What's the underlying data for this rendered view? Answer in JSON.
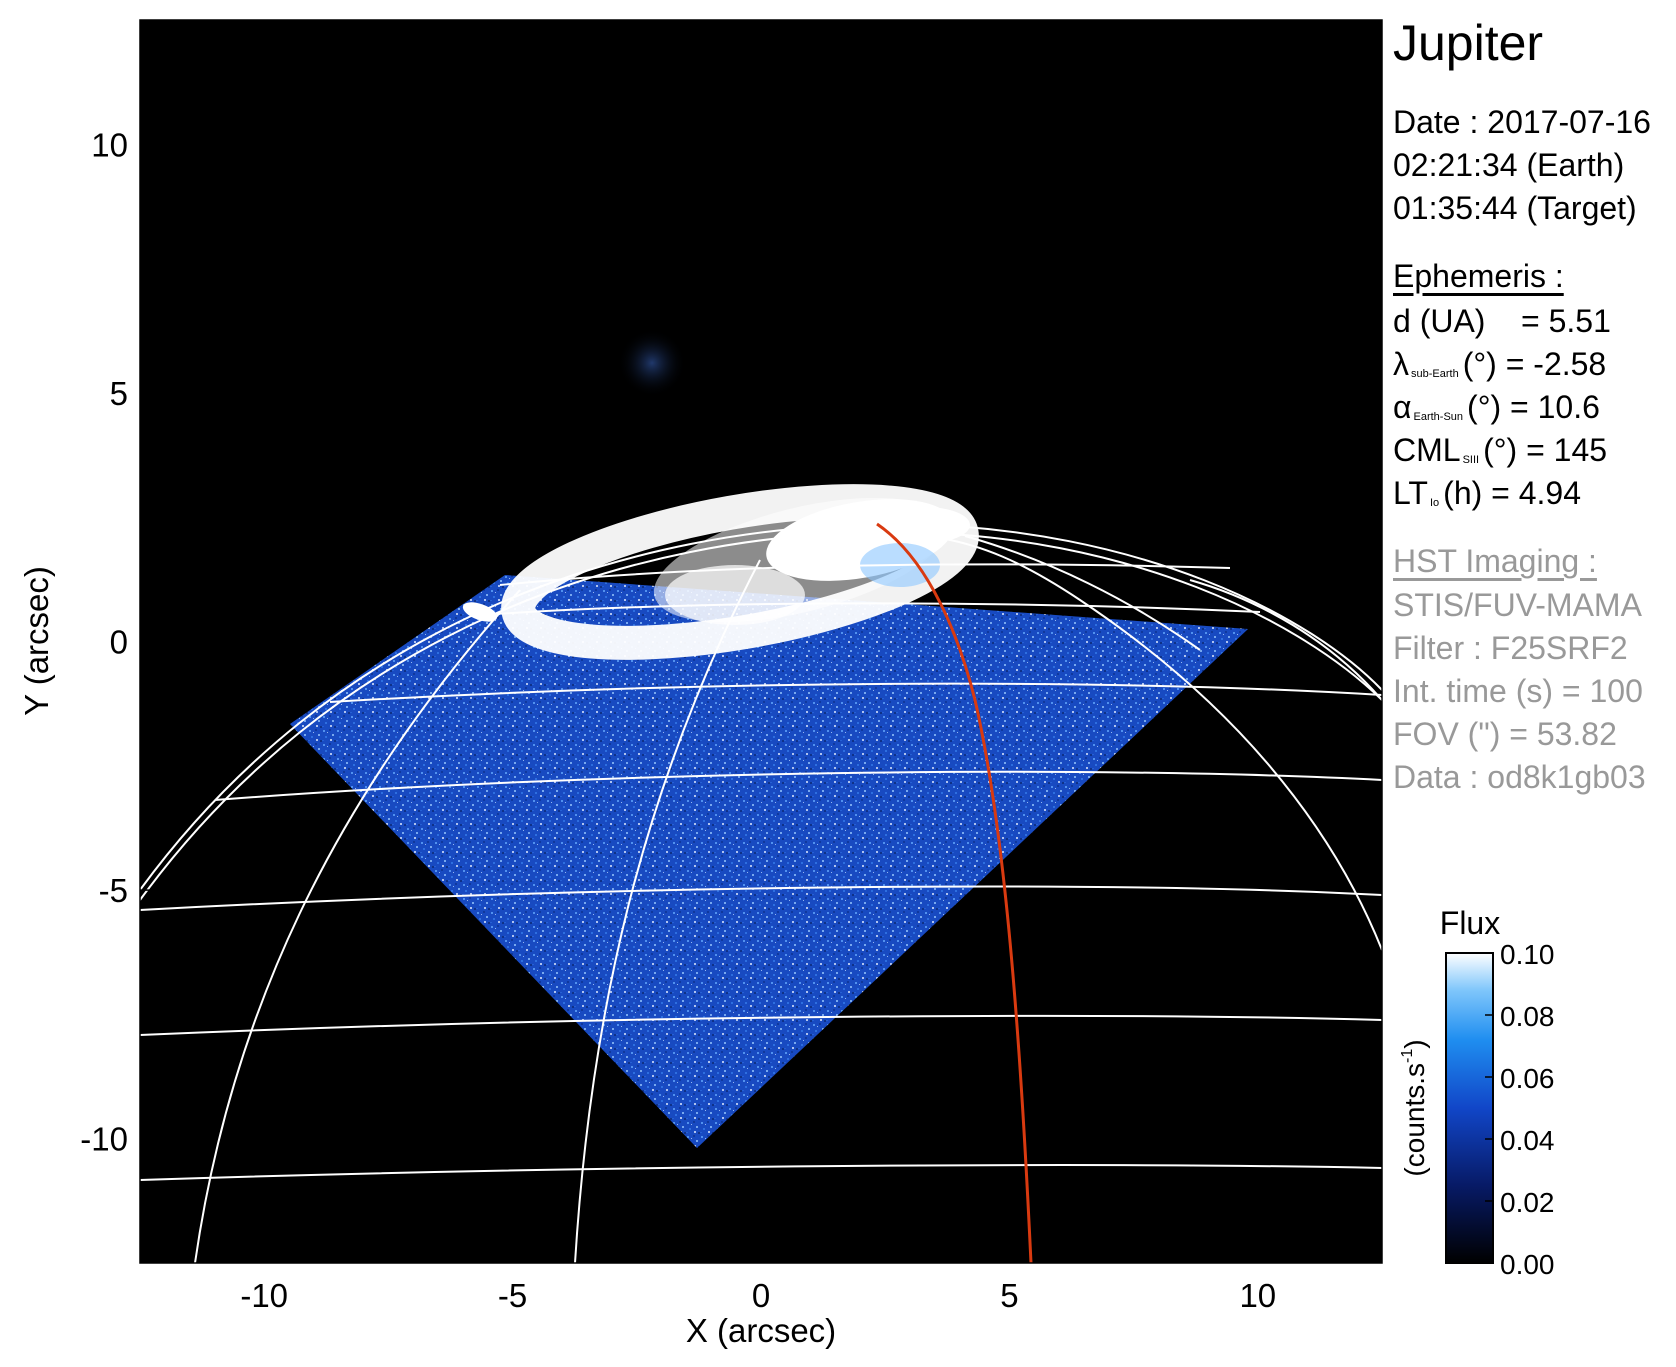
{
  "figure": {
    "colors": {
      "sky": "#000000",
      "disk": "#1f4fcc",
      "aurora": "#ffffff",
      "grid": "#ffffff",
      "meridian": "#d93a10",
      "info_gray": "#999999"
    }
  },
  "axes": {
    "xlabel": "X (arcsec)",
    "ylabel": "Y (arcsec)",
    "xlim": [
      -12.5,
      12.5
    ],
    "ylim": [
      -12.5,
      12.5
    ],
    "xticks": [
      "-10",
      "-5",
      "0",
      "5",
      "10"
    ],
    "yticks": [
      "10",
      "5",
      "0",
      "-5",
      "-10"
    ]
  },
  "info": {
    "planet": "Jupiter",
    "date": "Date : 2017-07-16",
    "time_earth": "02:21:34 (Earth)",
    "time_target": "01:35:44 (Target)",
    "ephemeris_header": "Ephemeris :",
    "eph": {
      "d_label": "d (UA)",
      "d_value": "= 5.51",
      "lambda_sym": "λ",
      "lambda_sub": "sub-Earth",
      "lambda_value": "(°) = -2.58",
      "alpha_sym": "α",
      "alpha_sub": "Earth-Sun",
      "alpha_value": "(°) = 10.6",
      "cml_sym": "CML",
      "cml_sub": "SIII",
      "cml_value": "(°) = 145",
      "lt_sym": "LT",
      "lt_sub": "Io",
      "lt_value": "(h) = 4.94"
    },
    "hst_header": "HST Imaging :",
    "instrument": "STIS/FUV-MAMA",
    "filter": "Filter : F25SRF2",
    "int_time": "Int. time (s) = 100",
    "fov": "FOV (\") = 53.82",
    "data": "Data : od8k1gb03"
  },
  "colorbar": {
    "title": "Flux",
    "unit": "(counts.s",
    "unit_sup": "-1",
    "unit_close": ")",
    "ticks": [
      "0.10",
      "0.08",
      "0.06",
      "0.04",
      "0.02",
      "0.00"
    ],
    "range": [
      0.0,
      0.1
    ]
  }
}
